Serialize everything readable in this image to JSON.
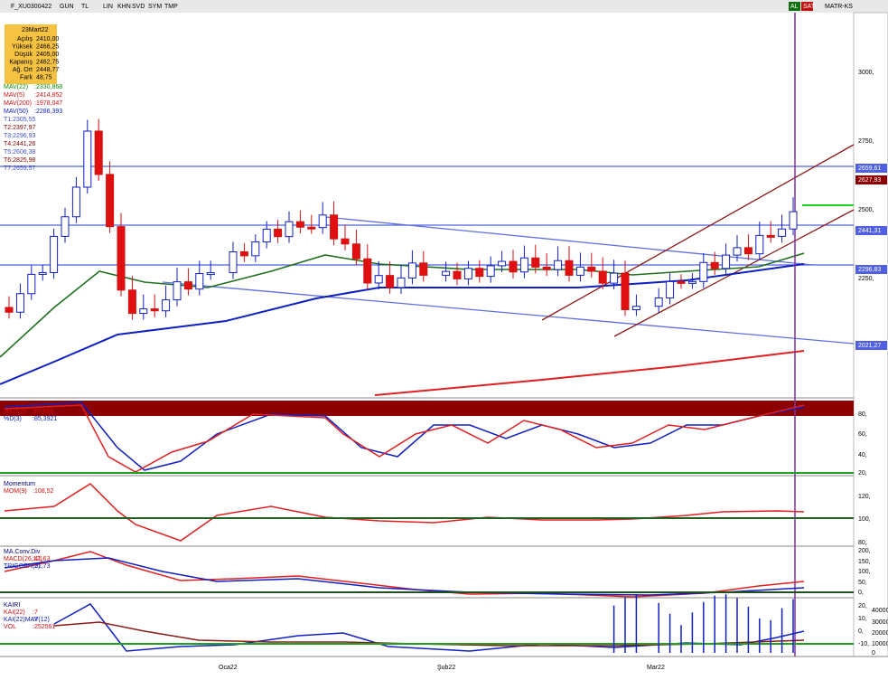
{
  "toolbar": {
    "symbol": "F_XU0300422",
    "items": [
      "GUN",
      "TL",
      "LIN",
      "KHN",
      "SVD",
      "SYM",
      "TMP"
    ],
    "right": [
      "AL",
      "SAT",
      "MATR-KS"
    ]
  },
  "info_box": {
    "date": "23Mart22",
    "rows": [
      [
        "Açılış",
        "2410,00"
      ],
      [
        "Yüksek",
        "2466,25"
      ],
      [
        "Düşük",
        "2405,00"
      ],
      [
        "Kapanış",
        "2462,75"
      ],
      [
        "Ağ. Ort",
        "2448,77"
      ],
      [
        "Fark",
        "48,75"
      ]
    ]
  },
  "main": {
    "indicators": [
      [
        "MAV(22)",
        ":2330,868"
      ],
      [
        "MAV(5)",
        ":2414,852"
      ],
      [
        "MAV(200)",
        ":1978,047"
      ],
      [
        "MAV(50)",
        ":2286,393"
      ]
    ],
    "trend": [
      "T1:2305,55",
      "T2:2397,97",
      "T3:2296,93",
      "T4:2441,26",
      "T5:2606,38",
      "T6:2825,98",
      "T7:2659,57"
    ],
    "axis": [
      "3000,",
      "2750,",
      "2500,",
      "2250,"
    ],
    "price_labels": [
      "2659,61",
      "2627,93",
      "2441,31",
      "2296,83",
      "2021,27"
    ]
  },
  "stochastic": {
    "labels": [
      [
        "%K(5,5)",
        ":87,855"
      ],
      [
        "%D(3)",
        ":85,3921"
      ]
    ],
    "axis": [
      "80,",
      "60,",
      "40,",
      "20,"
    ]
  },
  "momentum": {
    "title": "Momentum",
    "labels": [
      [
        "MOM(9)",
        ":108,52"
      ]
    ],
    "axis": [
      "120,",
      "100,",
      "80,"
    ]
  },
  "macd": {
    "title": "MA.Conv.Div",
    "labels": [
      [
        "MACD(26,12)",
        ":41,63"
      ],
      [
        "TRIGGER(9)",
        ":21,73"
      ]
    ],
    "axis": [
      "200,",
      "150,",
      "100,",
      "50,",
      "0,"
    ]
  },
  "kairi": {
    "title": "KAIRI",
    "labels": [
      [
        "KAI(22)",
        ":7"
      ],
      [
        "KAI(22)MAV(12)",
        ":7"
      ],
      [
        "VOL",
        ":252561"
      ]
    ],
    "axis": [
      "20,",
      "10,",
      "0,",
      "-10,"
    ],
    "axis_right": [
      "40000",
      "30000",
      "20000",
      "10000",
      "0"
    ]
  },
  "dates": [
    "Oca22",
    "Şub22",
    "Mar22"
  ]
}
